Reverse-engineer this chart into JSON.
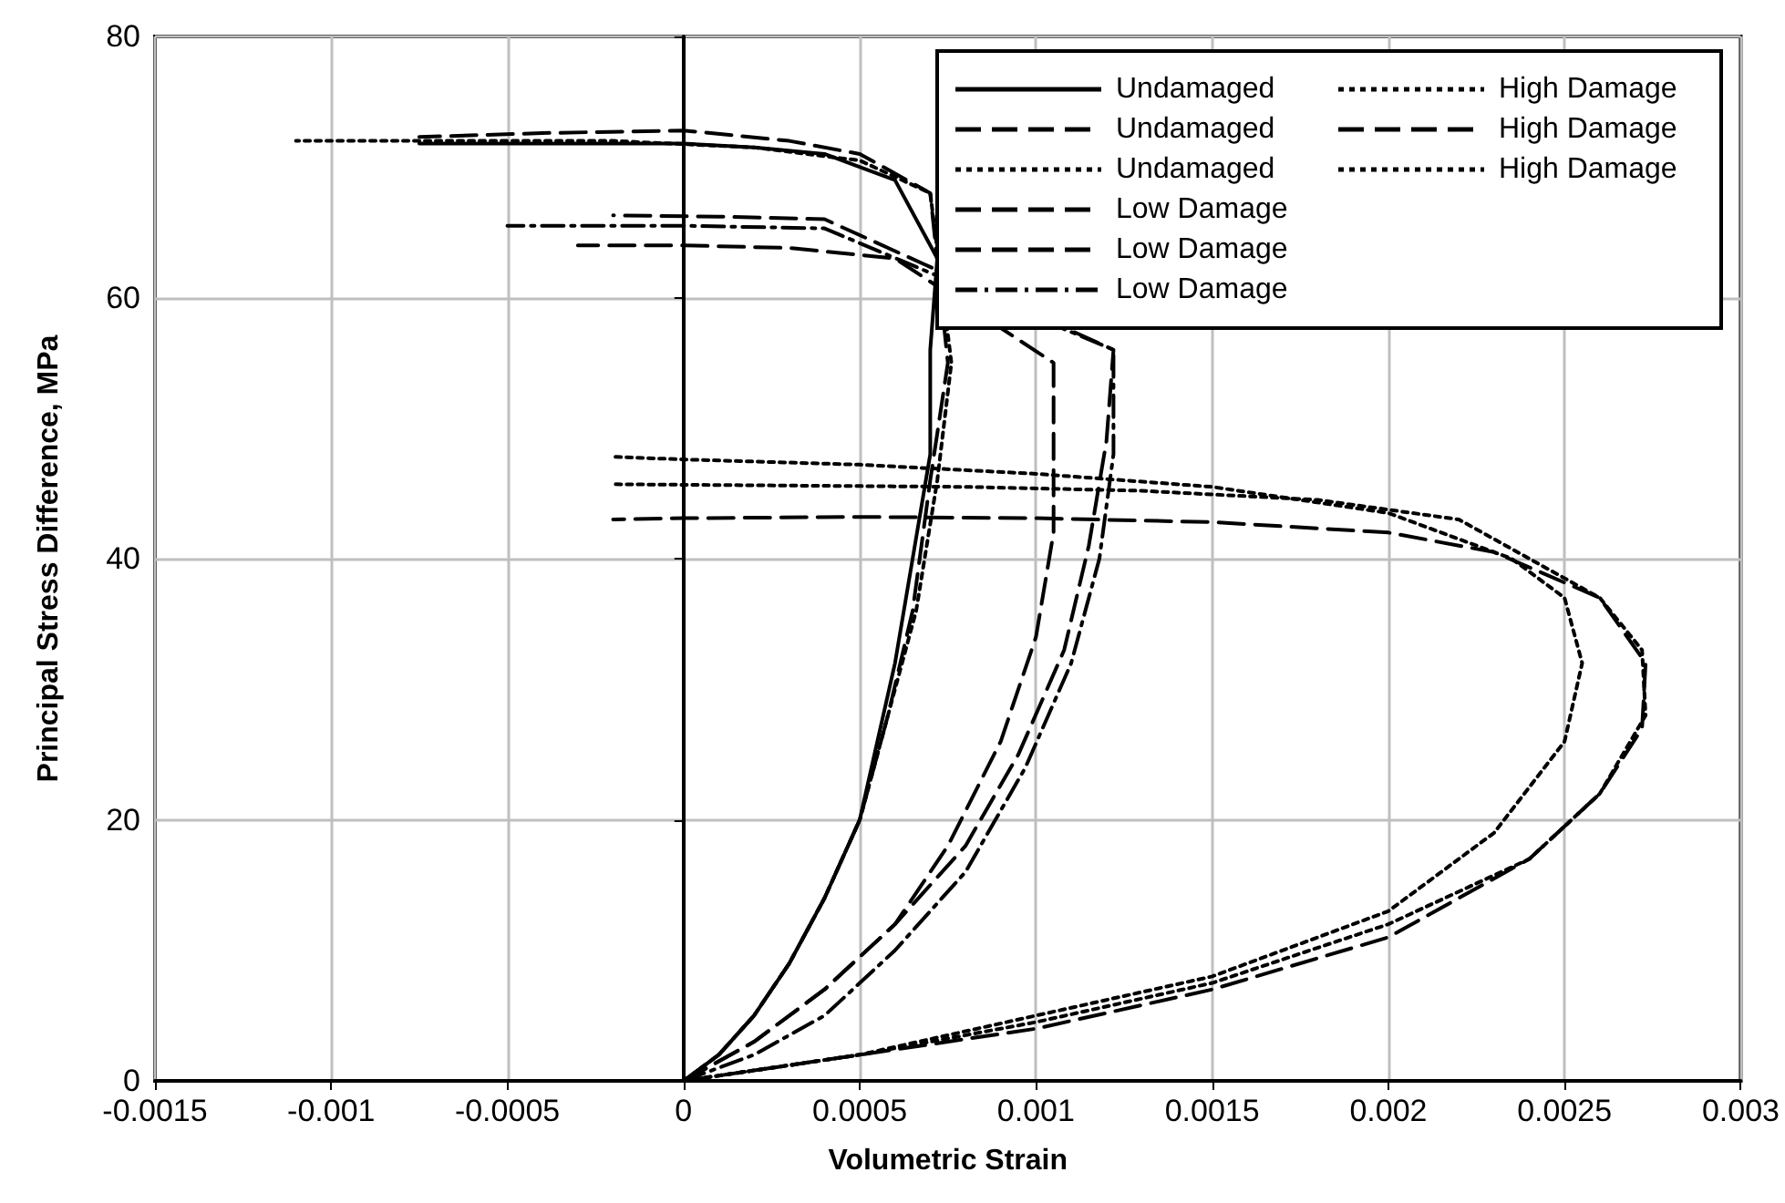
{
  "chart_data": {
    "type": "line",
    "xlabel": "Volumetric Strain",
    "ylabel": "Principal Stress Difference, MPa",
    "xlim": [
      -0.0015,
      0.003
    ],
    "xticks": [
      -0.0015,
      -0.001,
      -0.0005,
      0,
      0.0005,
      0.001,
      0.0015,
      0.002,
      0.0025,
      0.003
    ],
    "ylim": [
      0,
      80
    ],
    "yticks": [
      0,
      20,
      40,
      60,
      80
    ],
    "grid": true,
    "legend": "top right",
    "marker": "none",
    "series": [
      {
        "name": "Undamaged",
        "color": "#000000",
        "line_style": "solid",
        "x": [
          0,
          0.0001,
          0.0002,
          0.0003,
          0.0004,
          0.0005,
          0.00055,
          0.0006,
          0.00065,
          0.0007,
          0.0007,
          0.00072,
          0.0006,
          0.0004,
          0.0002,
          0,
          -0.0004,
          -0.00075
        ],
        "values": [
          0,
          2,
          5,
          9,
          14,
          20,
          26,
          32,
          40,
          48,
          56,
          63,
          69,
          71,
          71.5,
          71.8,
          71.8,
          71.8
        ]
      },
      {
        "name": "Undamaged",
        "color": "#000000",
        "line_style": "dashed",
        "x": [
          0,
          0.0001,
          0.0002,
          0.0003,
          0.0004,
          0.0005,
          0.00058,
          0.00065,
          0.0007,
          0.00075,
          0.0007,
          0.0005,
          0.0003,
          0,
          -0.0004,
          -0.00075
        ],
        "values": [
          0,
          2,
          5,
          9,
          14,
          20,
          28,
          36,
          46,
          55,
          68,
          71,
          72,
          72.8,
          72.6,
          72.3
        ]
      },
      {
        "name": "Undamaged",
        "color": "#000000",
        "line_style": "dotted",
        "x": [
          0,
          0.0001,
          0.0002,
          0.0003,
          0.0004,
          0.0005,
          0.00058,
          0.00066,
          0.00072,
          0.00076,
          0.0007,
          0.0005,
          0.0002,
          -0.0002,
          -0.0006,
          -0.0011
        ],
        "values": [
          0,
          2,
          5,
          9,
          14,
          20,
          28,
          36,
          46,
          55,
          68,
          70.5,
          71.5,
          72,
          72,
          72
        ]
      },
      {
        "name": "Low Damage",
        "color": "#000000",
        "line_style": "dashed",
        "x": [
          0,
          0.0002,
          0.0004,
          0.0006,
          0.0008,
          0.00095,
          0.00108,
          0.00115,
          0.0012,
          0.00122,
          0.0004,
          0.0001,
          -0.0002
        ],
        "values": [
          0,
          3,
          7,
          12,
          18,
          25,
          33,
          41,
          49,
          56,
          66,
          66.2,
          66.3
        ]
      },
      {
        "name": "Low Damage",
        "color": "#000000",
        "line_style": "dashed",
        "x": [
          0,
          0.0002,
          0.0004,
          0.0006,
          0.00075,
          0.0009,
          0.001,
          0.00105,
          0.00105,
          0.0006,
          0.0003,
          0,
          -0.0003
        ],
        "values": [
          0,
          3,
          7,
          12,
          18,
          26,
          34,
          42,
          55,
          63,
          63.8,
          64,
          64
        ]
      },
      {
        "name": "Low Damage",
        "color": "#000000",
        "line_style": "dashdot",
        "x": [
          0,
          0.0002,
          0.0004,
          0.0006,
          0.0008,
          0.00097,
          0.0011,
          0.00118,
          0.00122,
          0.00122,
          0.0004,
          0,
          -0.0005
        ],
        "values": [
          0,
          2,
          5,
          10,
          16,
          24,
          32,
          40,
          48,
          56,
          65.3,
          65.5,
          65.5
        ]
      },
      {
        "name": "High Damage",
        "color": "#000000",
        "line_style": "dotted",
        "x": [
          0,
          0.0005,
          0.001,
          0.0015,
          0.002,
          0.0023,
          0.0025,
          0.00255,
          0.0025,
          0.00235,
          0.002,
          0.0015,
          0.001,
          0.0005,
          0,
          -0.0002
        ],
        "values": [
          0,
          2,
          5,
          8,
          13,
          19,
          26,
          32,
          37,
          40,
          43.5,
          45.5,
          46.5,
          47.2,
          47.6,
          47.8
        ]
      },
      {
        "name": "High Damage",
        "color": "#000000",
        "line_style": "dashed",
        "x": [
          0,
          0.0005,
          0.001,
          0.0015,
          0.002,
          0.0024,
          0.0026,
          0.00272,
          0.00273,
          0.0026,
          0.0023,
          0.002,
          0.0015,
          0.001,
          0.0005,
          0,
          -0.0002
        ],
        "values": [
          0,
          2,
          4,
          7,
          11,
          17,
          22,
          27,
          32,
          37,
          40.5,
          42,
          42.8,
          43.1,
          43.2,
          43.1,
          43
        ]
      },
      {
        "name": "High Damage",
        "color": "#000000",
        "line_style": "dotted",
        "x": [
          0,
          0.0005,
          0.001,
          0.0015,
          0.002,
          0.0024,
          0.0026,
          0.00273,
          0.00272,
          0.0026,
          0.0024,
          0.0022,
          0.0018,
          0.0013,
          0.0008,
          0.0003,
          -0.0002
        ],
        "values": [
          0,
          2,
          4.5,
          7.5,
          12,
          17,
          22,
          28,
          33,
          37,
          40,
          43,
          44.5,
          45.2,
          45.5,
          45.6,
          45.7
        ]
      }
    ]
  }
}
